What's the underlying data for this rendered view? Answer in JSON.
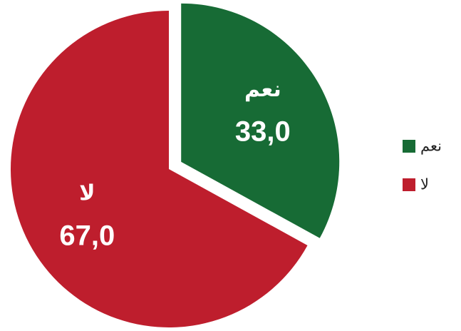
{
  "chart_data": {
    "type": "pie",
    "categories": [
      "نعم",
      "لا"
    ],
    "values": [
      33.0,
      67.0
    ],
    "value_labels": [
      "33,0",
      "67,0"
    ],
    "colors": [
      "#176b35",
      "#be1e2d"
    ],
    "exploded": [
      true,
      false
    ],
    "legend": "right"
  }
}
